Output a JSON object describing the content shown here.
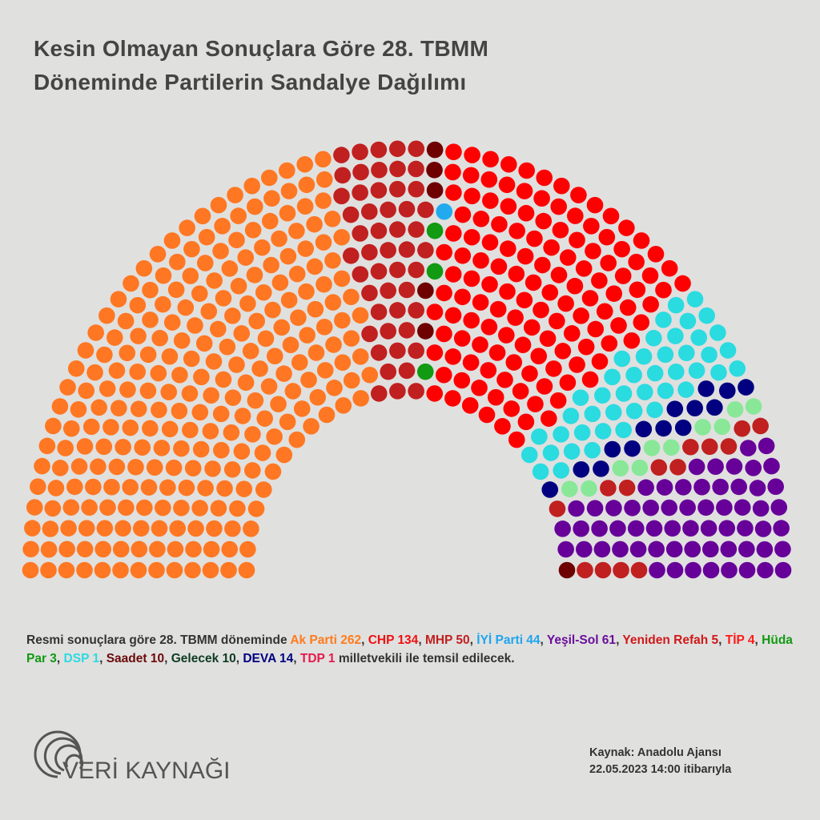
{
  "title": {
    "line1": "Kesin Olmayan Sonuçlara Göre 28. TBMM",
    "line2": "Döneminde Partilerin Sandalye Dağılımı"
  },
  "description": {
    "intro": "Resmi sonuçlara göre 28. TBMM döneminde ",
    "outro": " milletvekili ile temsil edilecek.",
    "parties": [
      {
        "label": "Ak Parti 262",
        "color": "#ff7b1c"
      },
      {
        "label": "CHP 134",
        "color": "#ee1111"
      },
      {
        "label": "MHP 50",
        "color": "#c0201f"
      },
      {
        "label": "İYİ Parti 44",
        "color": "#1fa5ee"
      },
      {
        "label": "Yeşil-Sol 61",
        "color": "#6a0f9a"
      },
      {
        "label": "Yeniden Refah 5",
        "color": "#d01818"
      },
      {
        "label": "TİP 4",
        "color": "#ff1a1a"
      },
      {
        "label": "Hüda Par 3",
        "color": "#129a12"
      },
      {
        "label": "DSP 1",
        "color": "#2adbe0"
      },
      {
        "label": "Saadet 10",
        "color": "#6b0a0a"
      },
      {
        "label": "Gelecek 10",
        "color": "#0e3b22"
      },
      {
        "label": "DEVA 14",
        "color": "#000080"
      },
      {
        "label": "TDP 1",
        "color": "#e6194b"
      }
    ]
  },
  "logo": {
    "text": "VERİ KAYNAĞI"
  },
  "source": {
    "line1": "Kaynak: Anadolu Ajansı",
    "line2": "22.05.2023 14:00 itibarıyla"
  },
  "chart_data": {
    "type": "parliament",
    "total": 599,
    "series": [
      {
        "name": "Ak Parti",
        "value": 262,
        "color": "#ff7722"
      },
      {
        "name": "MHP",
        "value": 50,
        "color": "#c0201f"
      },
      {
        "name": "Yeniden Refah",
        "value": 5,
        "color": "#6e0000"
      },
      {
        "name": "Hüda Par",
        "value": 3,
        "color": "#129a12"
      },
      {
        "name": "DSP",
        "value": 1,
        "color": "#22aaee"
      },
      {
        "name": "CHP",
        "value": 134,
        "color": "#ff0000"
      },
      {
        "name": "İYİ Parti",
        "value": 44,
        "color": "#2adbe0"
      },
      {
        "name": "DEVA",
        "value": 14,
        "color": "#000080"
      },
      {
        "name": "Gelecek",
        "value": 10,
        "color": "#88e898"
      },
      {
        "name": "Saadet",
        "value": 10,
        "color": "#c0201f"
      },
      {
        "name": "Yeşil-Sol",
        "value": 61,
        "color": "#660099"
      },
      {
        "name": "TİP",
        "value": 4,
        "color": "#c0201f"
      },
      {
        "name": "TDP",
        "value": 1,
        "color": "#6e0000"
      }
    ]
  }
}
